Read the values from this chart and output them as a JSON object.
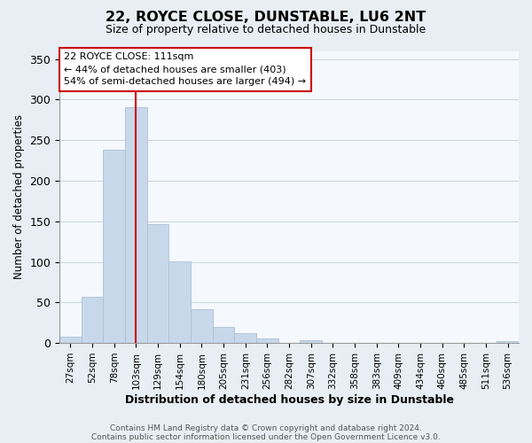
{
  "title": "22, ROYCE CLOSE, DUNSTABLE, LU6 2NT",
  "subtitle": "Size of property relative to detached houses in Dunstable",
  "xlabel": "Distribution of detached houses by size in Dunstable",
  "ylabel": "Number of detached properties",
  "bar_labels": [
    "27sqm",
    "52sqm",
    "78sqm",
    "103sqm",
    "129sqm",
    "154sqm",
    "180sqm",
    "205sqm",
    "231sqm",
    "256sqm",
    "282sqm",
    "307sqm",
    "332sqm",
    "358sqm",
    "383sqm",
    "409sqm",
    "434sqm",
    "460sqm",
    "485sqm",
    "511sqm",
    "536sqm"
  ],
  "bar_values": [
    8,
    57,
    238,
    291,
    146,
    101,
    42,
    20,
    12,
    6,
    0,
    3,
    0,
    0,
    0,
    0,
    0,
    0,
    0,
    0,
    2
  ],
  "bar_color": "#c8d8eb",
  "bar_edge_color": "#aac0d8",
  "vline_x_idx": 3,
  "vline_color": "#cc0000",
  "ylim": [
    0,
    360
  ],
  "yticks": [
    0,
    50,
    100,
    150,
    200,
    250,
    300,
    350
  ],
  "annotation_title": "22 ROYCE CLOSE: 111sqm",
  "annotation_line1": "← 44% of detached houses are smaller (403)",
  "annotation_line2": "54% of semi-detached houses are larger (494) →",
  "footnote1": "Contains HM Land Registry data © Crown copyright and database right 2024.",
  "footnote2": "Contains public sector information licensed under the Open Government Licence v3.0.",
  "bg_color": "#e8eef4",
  "plot_bg_color": "#f5f8fc",
  "grid_color": "#c8d4e0"
}
